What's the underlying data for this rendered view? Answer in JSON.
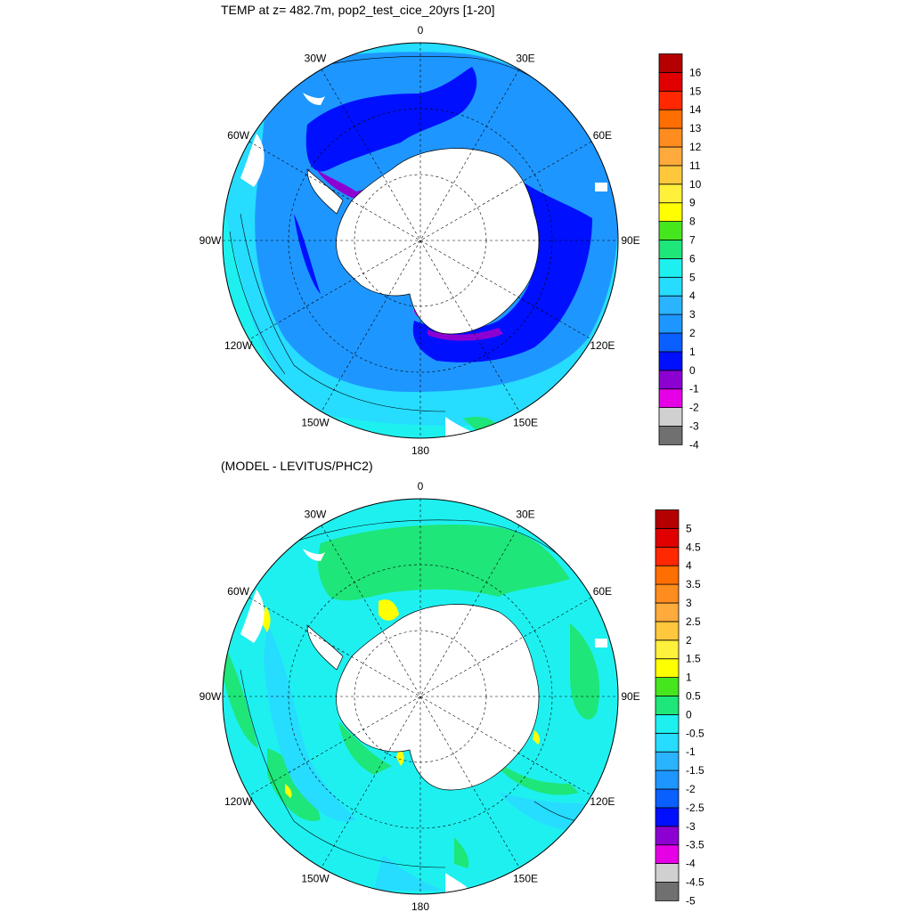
{
  "panels": [
    {
      "id": "temp",
      "title": "TEMP at z= 482.7m, pop2_test_cice_20yrs [1-20]",
      "longitude_labels": [
        "0",
        "30E",
        "60E",
        "90E",
        "120E",
        "150E",
        "180",
        "150W",
        "120W",
        "90W",
        "60W",
        "30W"
      ],
      "colorbar": {
        "labels": [
          "-4",
          "-3",
          "-2",
          "-1",
          "0",
          "1",
          "2",
          "3",
          "4",
          "5",
          "6",
          "7",
          "8",
          "9",
          "10",
          "11",
          "12",
          "13",
          "14",
          "15",
          "16"
        ],
        "colors": [
          "#707070",
          "#d0d0d0",
          "#e600e6",
          "#8c00d2",
          "#0010ff",
          "#0a5fff",
          "#1e96ff",
          "#2ab4ff",
          "#26dcff",
          "#1ef0f0",
          "#1ee678",
          "#46e61e",
          "#ffff00",
          "#fff03c",
          "#ffc83c",
          "#ffaa3c",
          "#ff8c1e",
          "#ff6e00",
          "#ff2800",
          "#e10000",
          "#b40000"
        ]
      }
    },
    {
      "id": "diff",
      "title": "(MODEL - LEVITUS/PHC2)",
      "longitude_labels": [
        "0",
        "30E",
        "60E",
        "90E",
        "120E",
        "150E",
        "180",
        "150W",
        "120W",
        "90W",
        "60W",
        "30W"
      ],
      "colorbar": {
        "labels": [
          "-5",
          "-4.5",
          "-4",
          "-3.5",
          "-3",
          "-2.5",
          "-2",
          "-1.5",
          "-1",
          "-0.5",
          "0",
          "0.5",
          "1",
          "1.5",
          "2",
          "2.5",
          "3",
          "3.5",
          "4",
          "4.5",
          "5"
        ],
        "colors": [
          "#707070",
          "#d0d0d0",
          "#e600e6",
          "#8c00d2",
          "#0010ff",
          "#0a5fff",
          "#1e96ff",
          "#2ab4ff",
          "#26dcff",
          "#1ef0f0",
          "#1ee678",
          "#46e61e",
          "#ffff00",
          "#fff03c",
          "#ffc83c",
          "#ffaa3c",
          "#ff8c1e",
          "#ff6e00",
          "#ff2800",
          "#e10000",
          "#b40000"
        ]
      }
    }
  ]
}
